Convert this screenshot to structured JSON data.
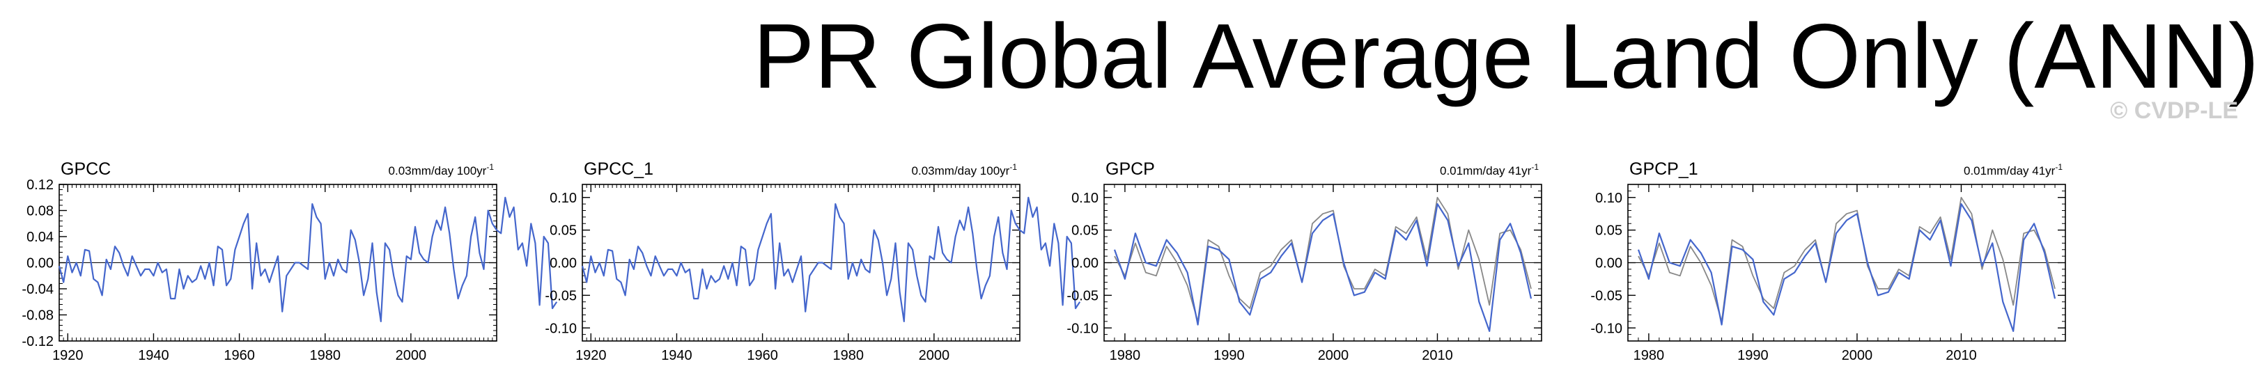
{
  "title": "PR Global Average Land Only (ANN)",
  "watermark": "© CVDP-LE",
  "colors": {
    "obs": "#4466cc",
    "comparison": "#888888",
    "frame": "#000000"
  },
  "panels": [
    {
      "name": "GPCC",
      "trend": "0.03mm/day 100yr",
      "trend_sup": "-1"
    },
    {
      "name": "GPCC_1",
      "trend": "0.03mm/day 100yr",
      "trend_sup": "-1"
    },
    {
      "name": "GPCP",
      "trend": "0.01mm/day 41yr",
      "trend_sup": "-1"
    },
    {
      "name": "GPCP_1",
      "trend": "0.01mm/day 41yr",
      "trend_sup": "-1"
    }
  ],
  "chart_data": [
    {
      "type": "line",
      "title": "GPCC",
      "xlim": [
        1918,
        2020
      ],
      "ylim": [
        -0.12,
        0.12
      ],
      "xticks": [
        1920,
        1940,
        1960,
        1980,
        2000
      ],
      "xtick_labels": [
        "1920",
        "1940",
        "1960",
        "1980",
        "2000"
      ],
      "yticks": [
        -0.12,
        -0.08,
        -0.04,
        0.0,
        0.04,
        0.08,
        0.12
      ],
      "ytick_labels": [
        "-0.12",
        "-0.08",
        "-0.04",
        "0.00",
        "0.04",
        "0.08",
        "0.12"
      ],
      "zero_line": true,
      "x_start": 1918,
      "series": [
        {
          "color": "#4466cc",
          "values": [
            -0.005,
            -0.03,
            0.01,
            -0.015,
            0.0,
            -0.02,
            0.02,
            0.018,
            -0.025,
            -0.03,
            -0.05,
            0.005,
            -0.01,
            0.025,
            0.015,
            -0.005,
            -0.02,
            0.01,
            -0.005,
            -0.02,
            -0.01,
            -0.01,
            -0.02,
            0.0,
            -0.015,
            -0.01,
            -0.055,
            -0.055,
            -0.01,
            -0.04,
            -0.02,
            -0.03,
            -0.025,
            -0.005,
            -0.025,
            0.0,
            -0.035,
            0.025,
            0.02,
            -0.035,
            -0.025,
            0.02,
            0.04,
            0.06,
            0.075,
            -0.04,
            0.03,
            -0.02,
            -0.01,
            -0.03,
            -0.01,
            0.01,
            -0.075,
            -0.02,
            -0.01,
            0.0,
            0.0,
            -0.005,
            -0.01,
            0.09,
            0.07,
            0.06,
            -0.025,
            0.0,
            -0.02,
            0.005,
            -0.01,
            -0.015,
            0.05,
            0.035,
            0.0,
            -0.05,
            -0.025,
            0.03,
            -0.045,
            -0.09,
            0.03,
            0.02,
            -0.02,
            -0.05,
            -0.06,
            0.01,
            0.005,
            0.055,
            0.015,
            0.005,
            0.0,
            0.04,
            0.065,
            0.05,
            0.085,
            0.045,
            -0.01,
            -0.055,
            -0.035,
            -0.02,
            0.04,
            0.07,
            0.015,
            -0.01,
            0.08,
            0.06,
            0.05,
            0.045,
            0.1,
            0.07,
            0.085,
            0.02,
            0.03,
            -0.005,
            0.06,
            0.03,
            -0.065,
            0.04,
            0.03,
            -0.07,
            -0.06
          ]
        }
      ]
    },
    {
      "type": "line",
      "title": "GPCC_1",
      "xlim": [
        1918,
        2020
      ],
      "ylim": [
        -0.12,
        0.12
      ],
      "xticks": [
        1920,
        1940,
        1960,
        1980,
        2000
      ],
      "xtick_labels": [
        "1920",
        "1940",
        "1960",
        "1980",
        "2000"
      ],
      "yticks": [
        -0.1,
        -0.05,
        0.0,
        0.05,
        0.1
      ],
      "ytick_labels": [
        "-0.10",
        "-0.05",
        "0.00",
        "0.05",
        "0.10"
      ],
      "zero_line": true,
      "x_start": 1918,
      "series": [
        {
          "color": "#4466cc",
          "values": [
            -0.005,
            -0.03,
            0.01,
            -0.015,
            0.0,
            -0.02,
            0.02,
            0.018,
            -0.025,
            -0.03,
            -0.05,
            0.005,
            -0.01,
            0.025,
            0.015,
            -0.005,
            -0.02,
            0.01,
            -0.005,
            -0.02,
            -0.01,
            -0.01,
            -0.02,
            0.0,
            -0.015,
            -0.01,
            -0.055,
            -0.055,
            -0.01,
            -0.04,
            -0.02,
            -0.03,
            -0.025,
            -0.005,
            -0.025,
            0.0,
            -0.035,
            0.025,
            0.02,
            -0.035,
            -0.025,
            0.02,
            0.04,
            0.06,
            0.075,
            -0.04,
            0.03,
            -0.02,
            -0.01,
            -0.03,
            -0.01,
            0.01,
            -0.075,
            -0.02,
            -0.01,
            0.0,
            0.0,
            -0.005,
            -0.01,
            0.09,
            0.07,
            0.06,
            -0.025,
            0.0,
            -0.02,
            0.005,
            -0.01,
            -0.015,
            0.05,
            0.035,
            0.0,
            -0.05,
            -0.025,
            0.03,
            -0.045,
            -0.09,
            0.03,
            0.02,
            -0.02,
            -0.05,
            -0.06,
            0.01,
            0.005,
            0.055,
            0.015,
            0.005,
            0.0,
            0.04,
            0.065,
            0.05,
            0.085,
            0.045,
            -0.01,
            -0.055,
            -0.035,
            -0.02,
            0.04,
            0.07,
            0.015,
            -0.01,
            0.08,
            0.06,
            0.05,
            0.045,
            0.1,
            0.07,
            0.085,
            0.02,
            0.03,
            -0.005,
            0.06,
            0.03,
            -0.065,
            0.04,
            0.03,
            -0.07,
            -0.06
          ]
        }
      ]
    },
    {
      "type": "line",
      "title": "GPCP",
      "xlim": [
        1978,
        2020
      ],
      "ylim": [
        -0.12,
        0.12
      ],
      "xticks": [
        1980,
        1990,
        2000,
        2010
      ],
      "xtick_labels": [
        "1980",
        "1990",
        "2000",
        "2010"
      ],
      "yticks": [
        -0.1,
        -0.05,
        0.0,
        0.05,
        0.1
      ],
      "ytick_labels": [
        "-0.10",
        "-0.05",
        "0.00",
        "0.05",
        "0.10"
      ],
      "zero_line": true,
      "x_start": 1979,
      "series": [
        {
          "color": "#888888",
          "values": [
            0.01,
            -0.02,
            0.03,
            -0.015,
            -0.02,
            0.025,
            0.0,
            -0.035,
            -0.09,
            0.035,
            0.025,
            -0.02,
            -0.055,
            -0.07,
            -0.015,
            -0.005,
            0.02,
            0.035,
            -0.03,
            0.06,
            0.075,
            0.08,
            -0.005,
            -0.04,
            -0.04,
            -0.01,
            -0.02,
            0.055,
            0.045,
            0.07,
            0.005,
            0.1,
            0.075,
            -0.01,
            0.05,
            0.005,
            -0.065,
            0.045,
            0.05,
            0.02,
            -0.04
          ]
        },
        {
          "color": "#4466cc",
          "values": [
            0.02,
            -0.025,
            0.045,
            0.0,
            -0.005,
            0.035,
            0.015,
            -0.015,
            -0.095,
            0.025,
            0.02,
            0.005,
            -0.06,
            -0.08,
            -0.025,
            -0.015,
            0.01,
            0.03,
            -0.03,
            0.045,
            0.065,
            0.075,
            0.0,
            -0.05,
            -0.045,
            -0.015,
            -0.025,
            0.05,
            0.035,
            0.065,
            -0.005,
            0.09,
            0.065,
            -0.005,
            0.03,
            -0.06,
            -0.105,
            0.035,
            0.06,
            0.015,
            -0.055
          ]
        }
      ]
    },
    {
      "type": "line",
      "title": "GPCP_1",
      "xlim": [
        1978,
        2020
      ],
      "ylim": [
        -0.12,
        0.12
      ],
      "xticks": [
        1980,
        1990,
        2000,
        2010
      ],
      "xtick_labels": [
        "1980",
        "1990",
        "2000",
        "2010"
      ],
      "yticks": [
        -0.1,
        -0.05,
        0.0,
        0.05,
        0.1
      ],
      "ytick_labels": [
        "-0.10",
        "-0.05",
        "0.00",
        "0.05",
        "0.10"
      ],
      "zero_line": true,
      "x_start": 1979,
      "series": [
        {
          "color": "#888888",
          "values": [
            0.01,
            -0.02,
            0.03,
            -0.015,
            -0.02,
            0.025,
            0.0,
            -0.035,
            -0.09,
            0.035,
            0.025,
            -0.02,
            -0.055,
            -0.07,
            -0.015,
            -0.005,
            0.02,
            0.035,
            -0.03,
            0.06,
            0.075,
            0.08,
            -0.005,
            -0.04,
            -0.04,
            -0.01,
            -0.02,
            0.055,
            0.045,
            0.07,
            0.005,
            0.1,
            0.075,
            -0.01,
            0.05,
            0.005,
            -0.065,
            0.045,
            0.05,
            0.02,
            -0.04
          ]
        },
        {
          "color": "#4466cc",
          "values": [
            0.02,
            -0.025,
            0.045,
            0.0,
            -0.005,
            0.035,
            0.015,
            -0.015,
            -0.095,
            0.025,
            0.02,
            0.005,
            -0.06,
            -0.08,
            -0.025,
            -0.015,
            0.01,
            0.03,
            -0.03,
            0.045,
            0.065,
            0.075,
            0.0,
            -0.05,
            -0.045,
            -0.015,
            -0.025,
            0.05,
            0.035,
            0.065,
            -0.005,
            0.09,
            0.065,
            -0.005,
            0.03,
            -0.06,
            -0.105,
            0.035,
            0.06,
            0.015,
            -0.055
          ]
        }
      ]
    }
  ]
}
